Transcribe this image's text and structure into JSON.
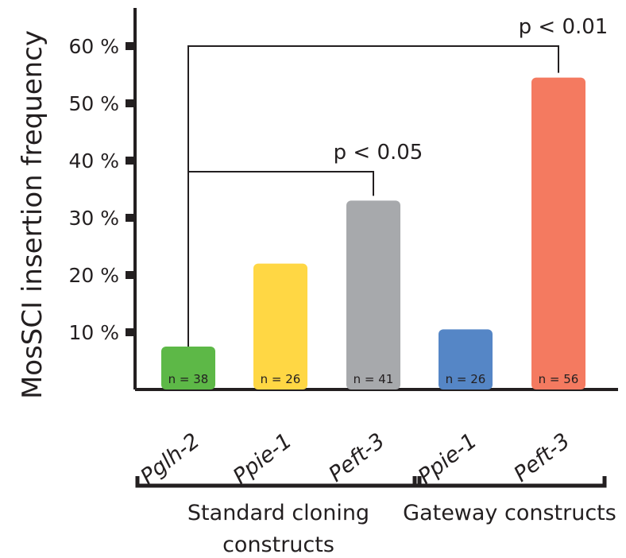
{
  "chart_data": {
    "type": "bar",
    "ylabel": "MosSCI insertion frequency",
    "ylim": [
      0,
      60
    ],
    "yticks": [
      10,
      20,
      30,
      40,
      50,
      60
    ],
    "ytick_labels": [
      "10 %",
      "20 %",
      "30 %",
      "40 %",
      "50 %",
      "60 %"
    ],
    "categories": [
      "Pglh-2",
      "Ppie-1",
      "Peft-3",
      "Ppie-1",
      "Peft-3"
    ],
    "values": [
      7.5,
      22,
      33,
      10.5,
      54.5
    ],
    "n_labels": [
      "n = 38",
      "n = 26",
      "n = 41",
      "n = 26",
      "n = 56"
    ],
    "colors": [
      "#5db847",
      "#ffd744",
      "#a7a9ac",
      "#5586c6",
      "#f47a60"
    ],
    "groups": [
      {
        "label_lines": [
          "Standard cloning",
          "constructs"
        ],
        "categories": [
          0,
          1,
          2
        ]
      },
      {
        "label_lines": [
          "Gateway constructs"
        ],
        "categories": [
          3,
          4
        ]
      }
    ],
    "annotations": [
      {
        "from": 0,
        "to": 2,
        "text": "p < 0.05"
      },
      {
        "from": 0,
        "to": 4,
        "text": "p < 0.01"
      }
    ]
  }
}
